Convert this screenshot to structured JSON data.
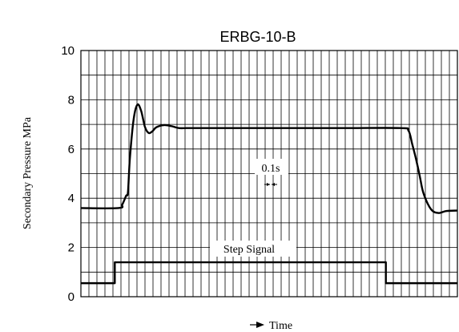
{
  "chart_data": {
    "type": "line",
    "title": "ERBG-10-B",
    "ylabel": "Secondary Pressure  MPa",
    "xlabel": "Time",
    "ylim": [
      0,
      10
    ],
    "yticks": [
      "0",
      "2",
      "4",
      "6",
      "8",
      "10"
    ],
    "grid": true,
    "annotations": {
      "time_scale": "0.1s",
      "step_signal": "Step Signal"
    },
    "series": [
      {
        "name": "Secondary Pressure",
        "x": [
          0.0,
          0.1,
          0.11,
          0.12,
          0.125,
          0.13,
          0.14,
          0.15,
          0.16,
          0.17,
          0.18,
          0.19,
          0.2,
          0.22,
          0.24,
          0.26,
          0.28,
          0.3,
          0.35,
          0.5,
          0.7,
          0.85,
          0.87,
          0.88,
          0.89,
          0.9,
          0.91,
          0.93,
          0.95,
          0.97,
          1.0
        ],
        "y": [
          3.6,
          3.6,
          3.75,
          4.1,
          4.25,
          5.6,
          7.2,
          7.8,
          7.55,
          6.9,
          6.65,
          6.72,
          6.88,
          6.97,
          6.93,
          6.85,
          6.85,
          6.85,
          6.85,
          6.85,
          6.85,
          6.85,
          6.75,
          6.2,
          5.6,
          4.9,
          4.2,
          3.55,
          3.4,
          3.48,
          3.5
        ]
      },
      {
        "name": "Step Signal",
        "x": [
          0.0,
          0.09,
          0.09,
          0.81,
          0.81,
          1.0
        ],
        "y": [
          0.55,
          0.55,
          1.4,
          1.4,
          0.55,
          0.55
        ]
      }
    ]
  }
}
